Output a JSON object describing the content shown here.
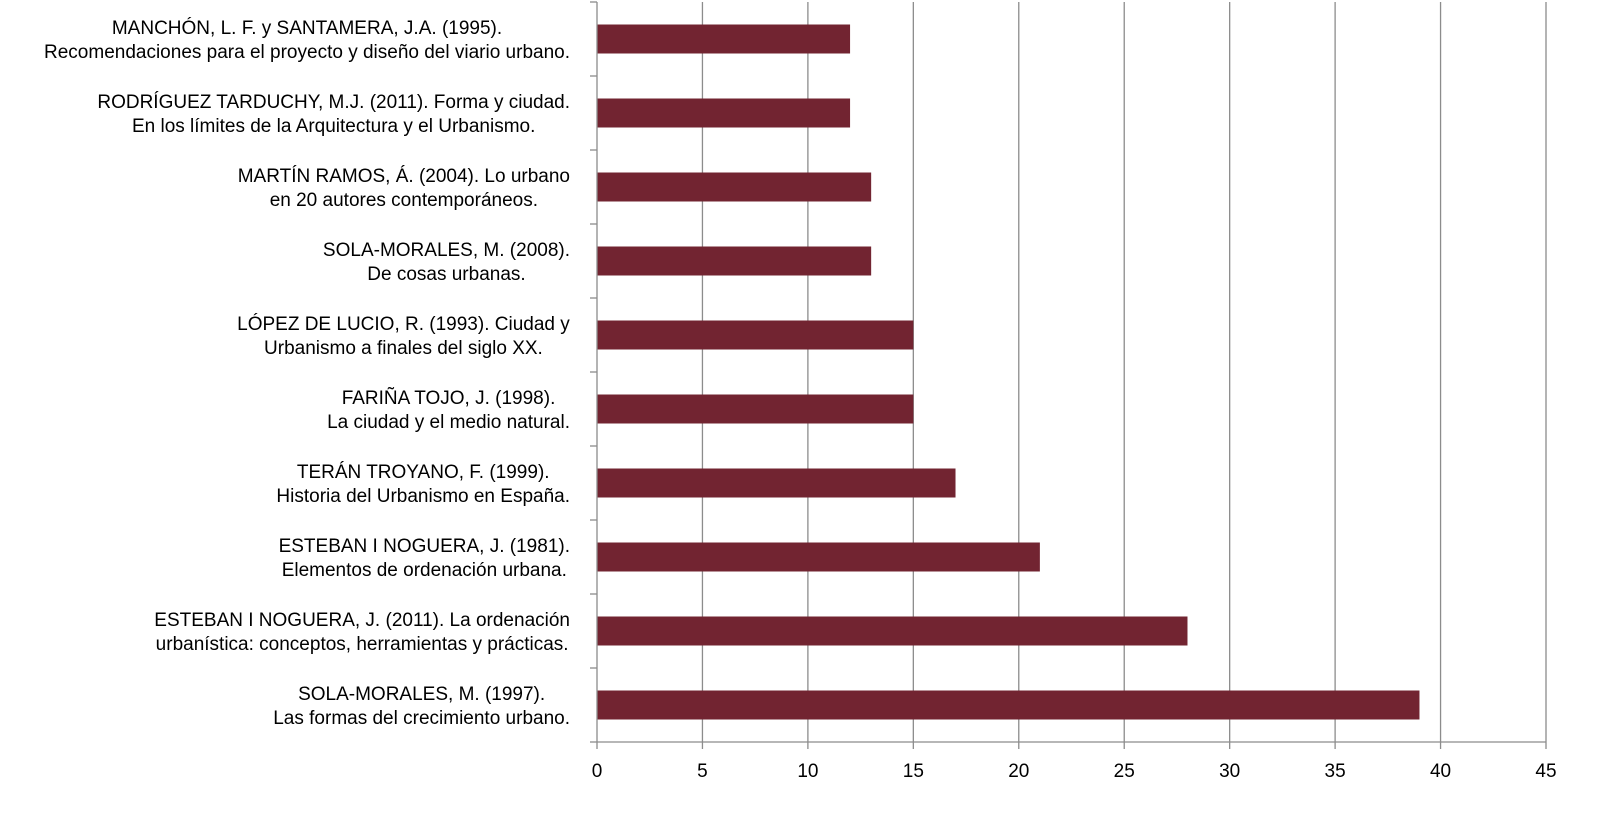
{
  "chart_data": {
    "type": "bar",
    "orientation": "horizontal",
    "categories": [
      [
        "MANCHÓN, L. F. y SANTAMERA, J.A. (1995).",
        "Recomendaciones para el proyecto y diseño del viario urbano."
      ],
      [
        "RODRÍGUEZ TARDUCHY, M.J. (2011). Forma y ciudad.",
        "En los límites de la Arquitectura y el Urbanismo."
      ],
      [
        "MARTÍN RAMOS, Á. (2004). Lo urbano",
        "en 20 autores contemporáneos."
      ],
      [
        "SOLA-MORALES, M. (2008).",
        "De cosas urbanas."
      ],
      [
        "LÓPEZ DE LUCIO, R. (1993). Ciudad y",
        "Urbanismo a finales del siglo XX."
      ],
      [
        "FARIÑA TOJO, J. (1998).",
        "La ciudad y el medio natural."
      ],
      [
        "TERÁN TROYANO, F. (1999).",
        "Historia del Urbanismo en España."
      ],
      [
        "ESTEBAN I NOGUERA, J. (1981).",
        "Elementos de ordenación urbana."
      ],
      [
        "ESTEBAN I NOGUERA, J. (2011). La ordenación",
        "urbanística: conceptos, herramientas y prácticas."
      ],
      [
        "SOLA-MORALES, M. (1997).",
        "Las formas del crecimiento urbano."
      ]
    ],
    "values": [
      12,
      12,
      13,
      13,
      15,
      15,
      17,
      21,
      28,
      39
    ],
    "xlim": [
      0,
      45
    ],
    "xticks": [
      "0",
      "5",
      "10",
      "15",
      "20",
      "25",
      "30",
      "35",
      "40",
      "45"
    ],
    "grid": "vertical",
    "bar_color": "#722431",
    "grid_color": "#8c8c8c",
    "title": "",
    "xlabel": "",
    "ylabel": ""
  }
}
